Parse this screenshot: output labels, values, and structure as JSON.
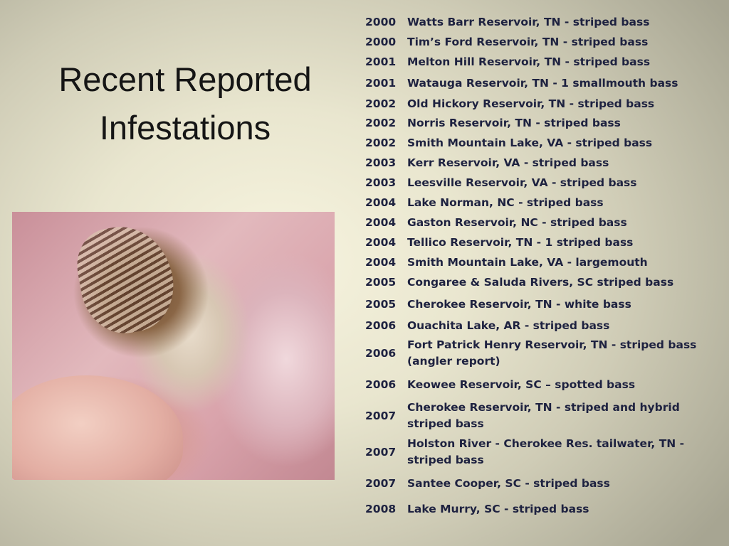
{
  "title": {
    "line1": "Recent Reported",
    "line2": "Infestations"
  },
  "reports": [
    {
      "year": "2000",
      "text": "Watts Barr Reservoir, TN - striped bass"
    },
    {
      "year": "2000",
      "text": "Tim’s Ford Reservoir, TN - striped bass"
    },
    {
      "year": "2001",
      "text": "Melton Hill Reservoir, TN - striped bass"
    },
    {
      "year": "2001",
      "text": "Watauga Reservoir, TN - 1 smallmouth bass"
    },
    {
      "year": "2002",
      "text": "Old Hickory Reservoir, TN - striped bass"
    },
    {
      "year": "2002",
      "text": "Norris Reservoir, TN - striped bass"
    },
    {
      "year": "2002",
      "text": "Smith Mountain Lake, VA - striped bass"
    },
    {
      "year": "2003",
      "text": "Kerr Reservoir, VA - striped bass"
    },
    {
      "year": "2003",
      "text": "Leesville Reservoir, VA - striped bass"
    },
    {
      "year": "2004",
      "text": "Lake Norman, NC - striped bass"
    },
    {
      "year": "2004",
      "text": "Gaston Reservoir, NC - striped bass"
    },
    {
      "year": "2004",
      "text": "Tellico Reservoir, TN - 1 striped bass"
    },
    {
      "year": "2004",
      "text": "Smith Mountain Lake, VA - largemouth"
    },
    {
      "year": "2005",
      "text": "Congaree & Saluda Rivers, SC striped bass"
    },
    {
      "year": "2005",
      "text": "Cherokee Reservoir, TN - white bass"
    },
    {
      "year": "2006",
      "text": "Ouachita Lake, AR - striped bass"
    },
    {
      "year": "2006",
      "text": "Fort Patrick Henry Reservoir, TN - striped bass (angler report)"
    },
    {
      "year": "2006",
      "text": "Keowee Reservoir, SC – spotted bass"
    },
    {
      "year": "2007",
      "text": "Cherokee Reservoir, TN - striped and hybrid striped bass"
    },
    {
      "year": "2007",
      "text": "Holston River - Cherokee Res. tailwater, TN - striped bass"
    },
    {
      "year": "2007",
      "text": "Santee Cooper, SC - striped bass"
    },
    {
      "year": "2008",
      "text": "Lake Murry, SC - striped bass"
    }
  ]
}
